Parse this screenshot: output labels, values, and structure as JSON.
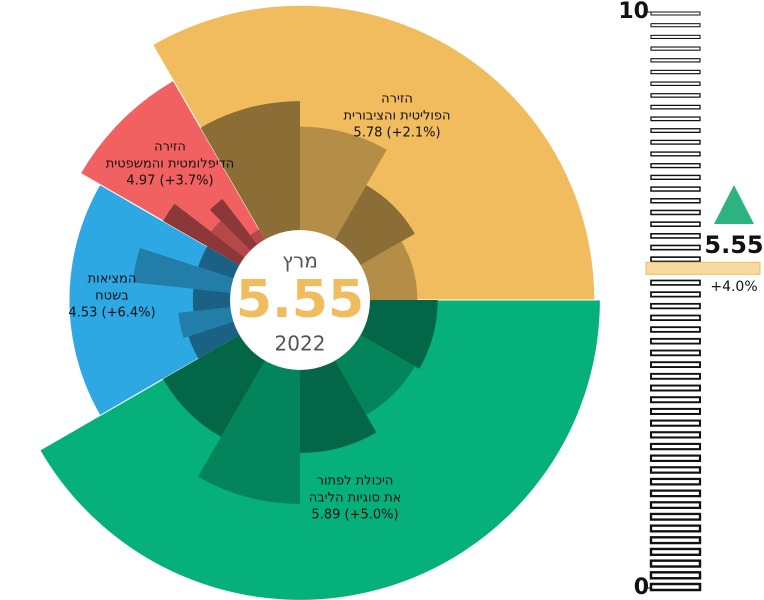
{
  "chart_data": {
    "type": "radial",
    "month": "מרץ",
    "overall": 5.55,
    "year": "2022",
    "overall_change_label": "+4.0%",
    "categories": [
      [
        "הזירה",
        "הפוליטית והציבורית"
      ],
      [
        "היכולת לפתור",
        "את סוגיות הליבה"
      ],
      [
        "המציאות",
        "בשטח"
      ],
      [
        "הזירה",
        "הדיפלומטית והמשפטית"
      ]
    ],
    "values": [
      5.78,
      5.89,
      4.53,
      4.97
    ],
    "value_labels": [
      "5.78 (+2.1%)",
      "5.89 (+5.0%)",
      "4.53 (+6.4%)",
      "4.97 (+3.7%)"
    ],
    "colors": [
      "#f0bc5e",
      "#05b07a",
      "#2ea8e2",
      "#f26161"
    ],
    "sub_values": [
      [
        3.9,
        3.4,
        2.6,
        2.3
      ],
      [
        2.7,
        2.6,
        3.0,
        4.0,
        3.1
      ],
      [
        2.3,
        2.4,
        2.1,
        3.3,
        2.1
      ],
      [
        3.1,
        2.2,
        2.5,
        1.6
      ]
    ],
    "ylim": [
      0,
      10
    ],
    "yticks": [
      0,
      10
    ]
  }
}
